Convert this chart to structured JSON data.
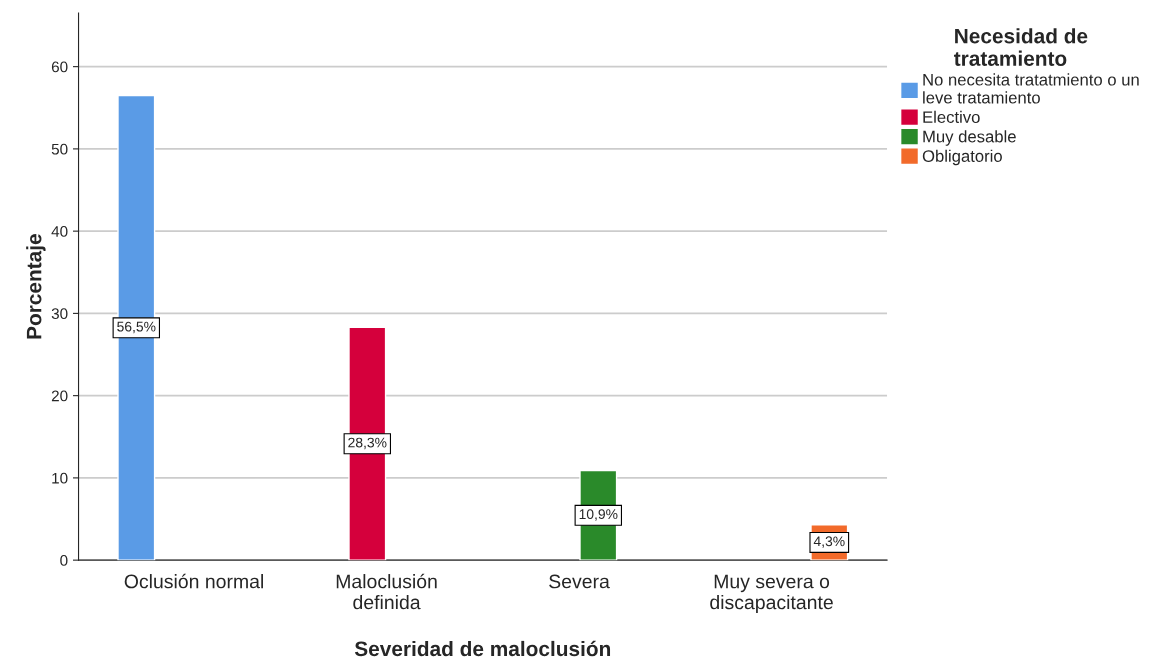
{
  "chart_data": {
    "type": "bar",
    "xlabel": "Severidad de maloclusión",
    "ylabel": "Porcentaje",
    "legend_title": "Necesidad de\ntratamiento",
    "categories": [
      "Oclusión normal",
      "Maloclusión\ndefinida",
      "Severa",
      "Muy severa o\ndiscapacitante"
    ],
    "series": [
      {
        "name": "No necesita tratatmiento o un\nleve tratamiento",
        "color": "#5a9be6",
        "values": [
          56.5,
          null,
          null,
          null
        ],
        "value_labels": [
          "56,5%",
          null,
          null,
          null
        ]
      },
      {
        "name": "Electivo",
        "color": "#d5003c",
        "values": [
          null,
          28.3,
          null,
          null
        ],
        "value_labels": [
          null,
          "28,3%",
          null,
          null
        ]
      },
      {
        "name": "Muy desable",
        "color": "#2a8a2a",
        "values": [
          null,
          null,
          10.9,
          null
        ],
        "value_labels": [
          null,
          null,
          "10,9%",
          null
        ]
      },
      {
        "name": "Obligatorio",
        "color": "#f26a2a",
        "values": [
          null,
          null,
          null,
          4.3
        ],
        "value_labels": [
          null,
          null,
          null,
          "4,3%"
        ]
      }
    ],
    "ylim": [
      0,
      66.5
    ],
    "yticks": [
      0,
      10,
      20,
      30,
      40,
      50,
      60
    ],
    "grid": "y",
    "legend": "top right"
  }
}
